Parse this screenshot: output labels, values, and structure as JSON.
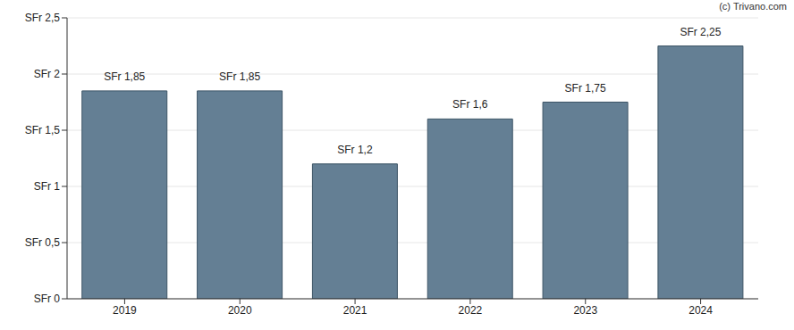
{
  "chart_data": {
    "type": "bar",
    "annotations": [
      "(c) Trivano.com"
    ],
    "categories": [
      "2019",
      "2020",
      "2021",
      "2022",
      "2023",
      "2024"
    ],
    "values": [
      1.85,
      1.85,
      1.2,
      1.6,
      1.75,
      2.25
    ],
    "value_labels": [
      "SFr 1,85",
      "SFr 1,85",
      "SFr 1,2",
      "SFr 1,6",
      "SFr 1,75",
      "SFr 2,25"
    ],
    "data_labels": true,
    "color": "#647f94",
    "ylim": [
      0,
      2.5
    ],
    "yticks": [
      {
        "value": 0,
        "label": "SFr 0"
      },
      {
        "value": 0.5,
        "label": "SFr 0,5"
      },
      {
        "value": 1,
        "label": "SFr 1"
      },
      {
        "value": 1.5,
        "label": "SFr 1,5"
      },
      {
        "value": 2,
        "label": "SFr 2"
      },
      {
        "value": 2.5,
        "label": "SFr 2,5"
      }
    ],
    "grid": true
  }
}
